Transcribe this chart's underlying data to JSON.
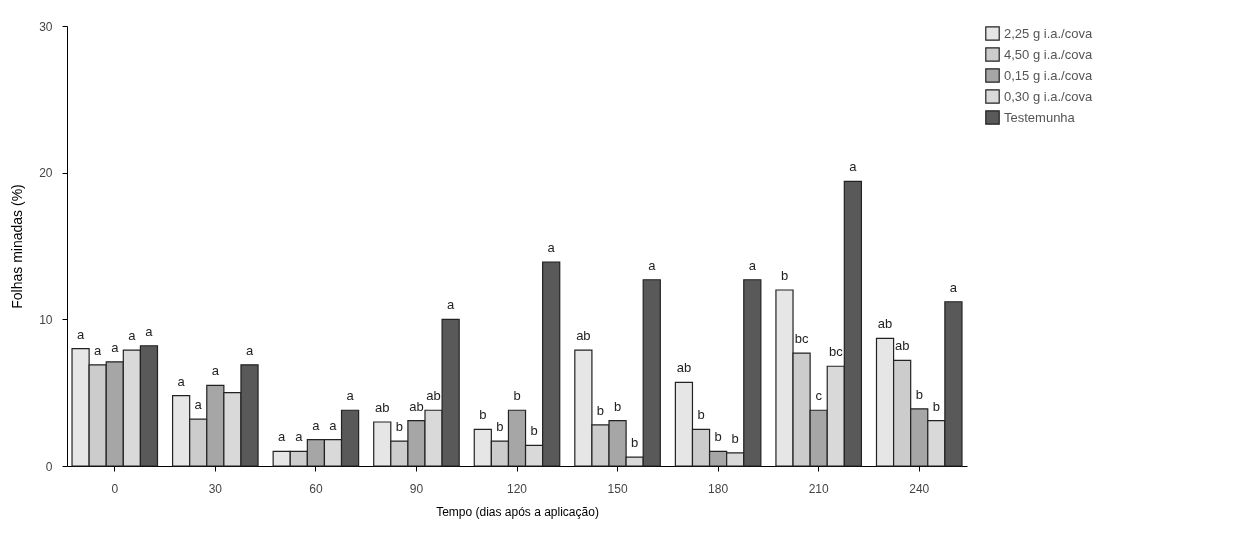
{
  "chart_data": {
    "type": "bar",
    "xlabel": "Tempo (dias após a aplicação)",
    "ylabel": "Folhas minadas (%)",
    "categories": [
      "0",
      "30",
      "60",
      "90",
      "120",
      "150",
      "180",
      "210",
      "240"
    ],
    "ylim": [
      0,
      30
    ],
    "yticks": [
      0,
      10,
      20,
      30
    ],
    "grid": false,
    "legend": "right",
    "series": [
      {
        "name": "2,25 g i.a./cova",
        "color": "#e6e6e6",
        "values": [
          8.0,
          4.8,
          1.0,
          3.0,
          2.5,
          7.9,
          5.7,
          12.0,
          8.7
        ],
        "value_labels": [
          "a",
          "a",
          "a",
          "ab",
          "b",
          "ab",
          "ab",
          "b",
          "ab"
        ]
      },
      {
        "name": "4,50 g i.a./cova",
        "color": "#cccccc",
        "values": [
          6.9,
          3.2,
          1.0,
          1.7,
          1.7,
          2.8,
          2.5,
          7.7,
          7.2
        ],
        "value_labels": [
          "a",
          "a",
          "a",
          "b",
          "b",
          "b",
          "b",
          "bc",
          "ab"
        ]
      },
      {
        "name": "0,15 g i.a./cova",
        "color": "#a6a6a6",
        "values": [
          7.1,
          5.5,
          1.8,
          3.1,
          3.8,
          3.1,
          1.0,
          3.8,
          3.9
        ],
        "value_labels": [
          "a",
          "a",
          "a",
          "ab",
          "b",
          "b",
          "b",
          "c",
          "b"
        ]
      },
      {
        "name": "0,30 g i.a./cova",
        "color": "#d9d9d9",
        "values": [
          7.9,
          5.0,
          1.8,
          3.8,
          1.4,
          0.6,
          0.9,
          6.8,
          3.1
        ],
        "value_labels": [
          "a",
          null,
          "a",
          "ab",
          "b",
          "b",
          "b",
          "bc",
          "b"
        ]
      },
      {
        "name": "Testemunha",
        "color": "#595959",
        "values": [
          8.2,
          6.9,
          3.8,
          10.0,
          13.9,
          12.7,
          12.7,
          19.4,
          11.2
        ],
        "value_labels": [
          "a",
          "a",
          "a",
          "a",
          "a",
          "a",
          "a",
          "a",
          "a"
        ]
      }
    ]
  }
}
